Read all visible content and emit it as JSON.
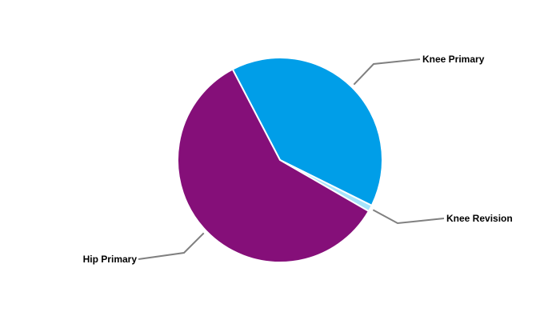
{
  "chart_data": {
    "type": "pie",
    "title": "",
    "start_angle_deg": 332.4,
    "direction": "clockwise",
    "slices": [
      {
        "label": "Knee Primary",
        "value": 40,
        "color": "#009ee8"
      },
      {
        "label": "Knee Revision",
        "value": 1,
        "color": "#a6e4fb"
      },
      {
        "label": "Hip Primary",
        "value": 59,
        "color": "#850f79"
      }
    ],
    "legend": "none",
    "labels": "outside with leader lines",
    "leader_color": "#808080"
  }
}
